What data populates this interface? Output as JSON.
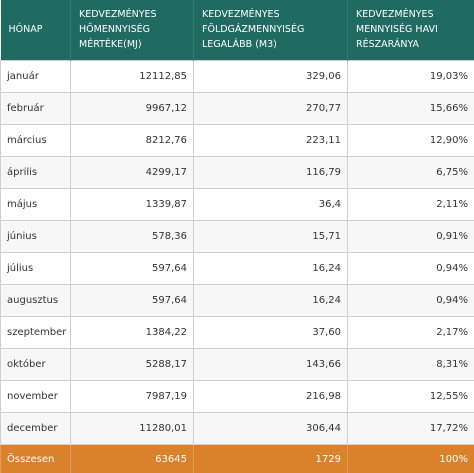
{
  "table": {
    "header": [
      [
        "HÓNAP"
      ],
      [
        "KEDVEZMÉNYES",
        "HŐMENNYISÉG",
        "MÉRTÉKE(MJ)"
      ],
      [
        "KEDVEZMÉNYES",
        "FÖLDGÁZMENNYISÉG",
        "LEGALÁBB (M3)"
      ],
      [
        "KEDVEZMÉNYES",
        "MENNYISÉG HAVI",
        "RÉSZARÁNYA"
      ]
    ],
    "rows": [
      [
        "január",
        "12112,85",
        "329,06",
        "19,03%"
      ],
      [
        "február",
        "9967,12",
        "270,77",
        "15,66%"
      ],
      [
        "március",
        "8212,76",
        "223,11",
        "12,90%"
      ],
      [
        "április",
        "4299,17",
        "116,79",
        "6,75%"
      ],
      [
        "május",
        "1339,87",
        "36,4",
        "2,11%"
      ],
      [
        "június",
        "578,36",
        "15,71",
        "0,91%"
      ],
      [
        "július",
        "597,64",
        "16,24",
        "0,94%"
      ],
      [
        "augusztus",
        "597,64",
        "16,24",
        "0,94%"
      ],
      [
        "szeptember",
        "1384,22",
        "37,60",
        "2,17%"
      ],
      [
        "október",
        "5288,17",
        "143,66",
        "8,31%"
      ],
      [
        "november",
        "7987,19",
        "216,98",
        "12,55%"
      ],
      [
        "december",
        "11280,01",
        "306,44",
        "17,72%"
      ]
    ],
    "total": [
      "Összesen",
      "63645",
      "1729",
      "100%"
    ]
  }
}
